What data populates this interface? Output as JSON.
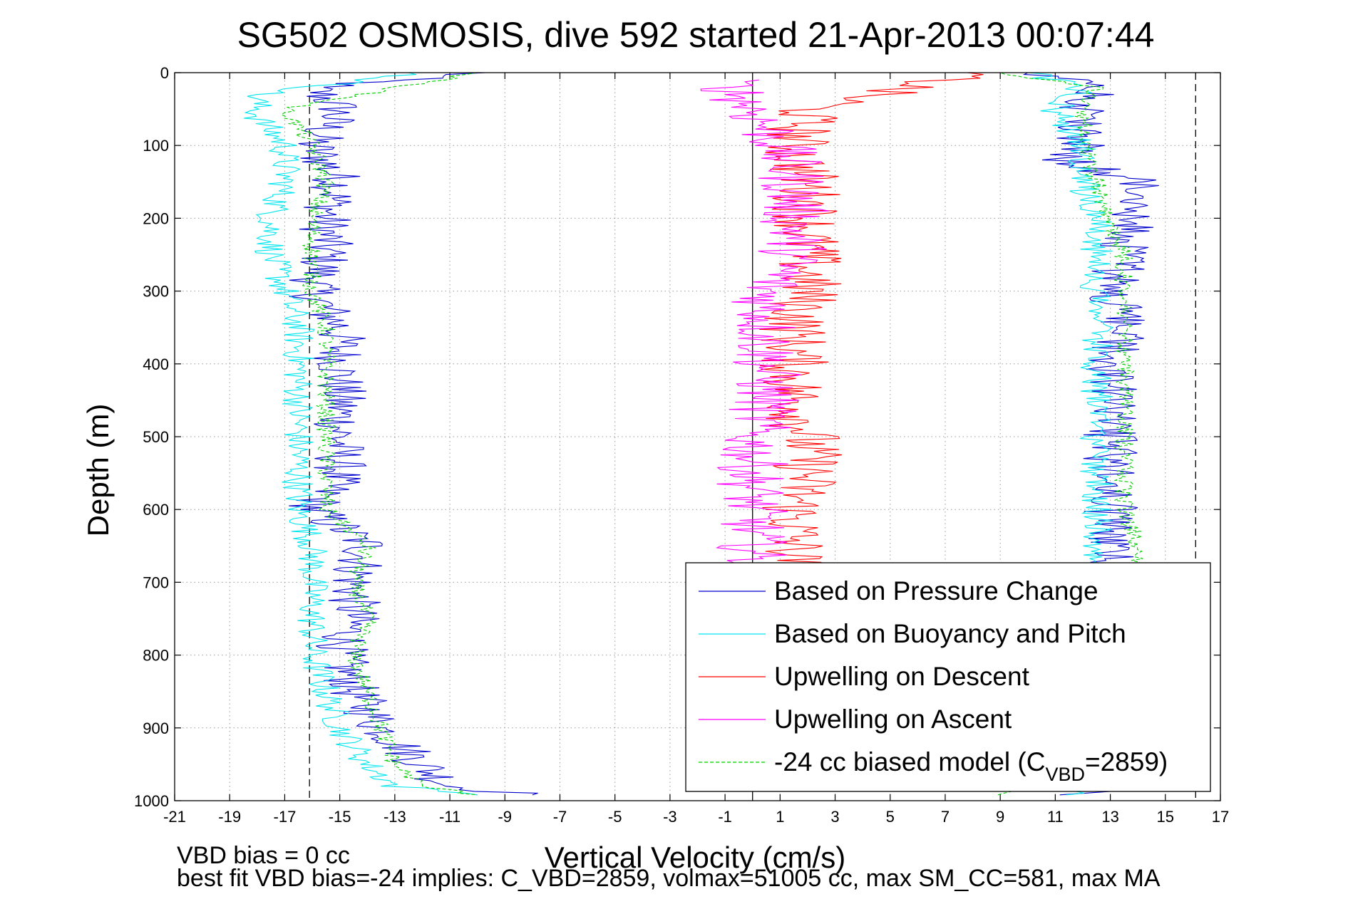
{
  "chart_data": {
    "type": "line",
    "title": "SG502 OSMOSIS, dive 592 started 21-Apr-2013 00:07:44",
    "xlabel": "Vertical Velocity (cm/s)",
    "ylabel": "Depth (m)",
    "xlim": [
      -21,
      17
    ],
    "ylim": [
      0,
      1000
    ],
    "y_reversed": true,
    "grid": true,
    "legend_position": "lower-right",
    "x_ticks": [
      "-21",
      "-19",
      "-17",
      "-15",
      "-13",
      "-11",
      "-9",
      "-7",
      "-5",
      "-3",
      "-1",
      "1",
      "3",
      "5",
      "7",
      "9",
      "11",
      "13",
      "15",
      "17"
    ],
    "y_ticks": [
      "0",
      "100",
      "200",
      "300",
      "400",
      "500",
      "600",
      "700",
      "800",
      "900",
      "1000"
    ],
    "reference_lines": [
      {
        "x": -16.1,
        "style": "dashed"
      },
      {
        "x": 0,
        "style": "solid"
      },
      {
        "x": 16.1,
        "style": "dashed"
      }
    ],
    "series": [
      {
        "name": "Based on Pressure Change",
        "color": "#0000cc",
        "descent": [
          [
            -10,
            0
          ],
          [
            -16,
            20
          ],
          [
            -15,
            50
          ],
          [
            -16,
            100
          ],
          [
            -15,
            150
          ],
          [
            -15.5,
            200
          ],
          [
            -15.5,
            250
          ],
          [
            -16,
            300
          ],
          [
            -15,
            350
          ],
          [
            -15,
            400
          ],
          [
            -15,
            450
          ],
          [
            -15,
            500
          ],
          [
            -15,
            550
          ],
          [
            -16,
            600
          ],
          [
            -14,
            650
          ],
          [
            -14.5,
            700
          ],
          [
            -14.5,
            750
          ],
          [
            -15,
            800
          ],
          [
            -14.5,
            850
          ],
          [
            -13.5,
            900
          ],
          [
            -12,
            950
          ],
          [
            -11,
            980
          ],
          [
            -8,
            992
          ]
        ],
        "ascent": [
          [
            12,
            992
          ],
          [
            13.5,
            950
          ],
          [
            13.5,
            900
          ],
          [
            13.5,
            850
          ],
          [
            13.5,
            800
          ],
          [
            13.5,
            750
          ],
          [
            13.5,
            700
          ],
          [
            13,
            650
          ],
          [
            13,
            600
          ],
          [
            13,
            550
          ],
          [
            13,
            500
          ],
          [
            13,
            450
          ],
          [
            13,
            400
          ],
          [
            13.5,
            350
          ],
          [
            13,
            300
          ],
          [
            13.5,
            250
          ],
          [
            14,
            200
          ],
          [
            14,
            150
          ],
          [
            11.5,
            120
          ],
          [
            12,
            100
          ],
          [
            12,
            50
          ],
          [
            13,
            20
          ],
          [
            10,
            0
          ]
        ]
      },
      {
        "name": "Based on Buoyancy and Pitch",
        "color": "#00e5ee",
        "descent": [
          [
            -12,
            0
          ],
          [
            -18,
            30
          ],
          [
            -18,
            60
          ],
          [
            -17,
            100
          ],
          [
            -17,
            150
          ],
          [
            -17.5,
            200
          ],
          [
            -17.5,
            250
          ],
          [
            -17,
            300
          ],
          [
            -16.5,
            350
          ],
          [
            -16.5,
            400
          ],
          [
            -16.5,
            450
          ],
          [
            -16.5,
            500
          ],
          [
            -16.5,
            550
          ],
          [
            -16.5,
            600
          ],
          [
            -16,
            650
          ],
          [
            -16,
            700
          ],
          [
            -16,
            750
          ],
          [
            -16,
            800
          ],
          [
            -15.5,
            850
          ],
          [
            -15,
            900
          ],
          [
            -14,
            950
          ],
          [
            -13,
            980
          ],
          [
            -10,
            992
          ]
        ],
        "ascent": [
          [
            12,
            992
          ],
          [
            12.5,
            950
          ],
          [
            12.5,
            900
          ],
          [
            12.5,
            850
          ],
          [
            12.5,
            800
          ],
          [
            12.5,
            750
          ],
          [
            12.5,
            700
          ],
          [
            12.5,
            650
          ],
          [
            12.5,
            600
          ],
          [
            12.5,
            550
          ],
          [
            12.5,
            500
          ],
          [
            12.5,
            450
          ],
          [
            12.5,
            400
          ],
          [
            12.5,
            350
          ],
          [
            12.5,
            300
          ],
          [
            12.5,
            250
          ],
          [
            12.5,
            200
          ],
          [
            12,
            150
          ],
          [
            12,
            100
          ],
          [
            11,
            50
          ],
          [
            12,
            20
          ],
          [
            10,
            0
          ]
        ]
      },
      {
        "name": "Upwelling on Descent",
        "color": "#ff0000",
        "values": [
          [
            8,
            0
          ],
          [
            2,
            50
          ],
          [
            1.5,
            100
          ],
          [
            2,
            150
          ],
          [
            2,
            200
          ],
          [
            2,
            250
          ],
          [
            2,
            300
          ],
          [
            1.5,
            350
          ],
          [
            1.5,
            400
          ],
          [
            1.5,
            450
          ],
          [
            2,
            500
          ],
          [
            2,
            550
          ],
          [
            1.5,
            600
          ],
          [
            1.5,
            650
          ],
          [
            1.5,
            700
          ]
        ]
      },
      {
        "name": "Upwelling on Ascent",
        "color": "#ff00ff",
        "values": [
          [
            -1,
            10
          ],
          [
            0,
            50
          ],
          [
            1,
            100
          ],
          [
            1.5,
            150
          ],
          [
            1.5,
            200
          ],
          [
            1.5,
            250
          ],
          [
            0.5,
            300
          ],
          [
            0.5,
            350
          ],
          [
            0.5,
            400
          ],
          [
            0.5,
            450
          ],
          [
            0,
            500
          ],
          [
            0,
            550
          ],
          [
            0,
            600
          ],
          [
            0,
            650
          ],
          [
            0,
            700
          ]
        ]
      },
      {
        "name": "-24 cc biased model (C_VBD=2859)",
        "legend_name": "-24 cc biased model (C",
        "legend_sub": "VBD",
        "legend_tail": "=2859)",
        "color": "#00cc00",
        "dashed": true,
        "descent": [
          [
            -10,
            0
          ],
          [
            -17,
            50
          ],
          [
            -16,
            100
          ],
          [
            -15.5,
            150
          ],
          [
            -16,
            200
          ],
          [
            -16,
            250
          ],
          [
            -16,
            300
          ],
          [
            -15.5,
            350
          ],
          [
            -15.5,
            400
          ],
          [
            -15.5,
            450
          ],
          [
            -15.5,
            500
          ],
          [
            -15.5,
            550
          ],
          [
            -15.5,
            600
          ],
          [
            -14,
            650
          ],
          [
            -14.5,
            700
          ],
          [
            -14,
            750
          ],
          [
            -14.5,
            800
          ],
          [
            -14,
            850
          ],
          [
            -13.5,
            900
          ],
          [
            -13,
            950
          ],
          [
            -12,
            980
          ],
          [
            -10,
            992
          ]
        ],
        "ascent": [
          [
            9,
            992
          ],
          [
            13.5,
            950
          ],
          [
            14,
            900
          ],
          [
            14,
            850
          ],
          [
            14,
            800
          ],
          [
            14,
            750
          ],
          [
            14,
            700
          ],
          [
            14,
            650
          ],
          [
            13.5,
            600
          ],
          [
            13.5,
            550
          ],
          [
            13.5,
            500
          ],
          [
            13.5,
            450
          ],
          [
            13.5,
            400
          ],
          [
            13.5,
            350
          ],
          [
            13.5,
            300
          ],
          [
            13.5,
            250
          ],
          [
            13,
            200
          ],
          [
            12.5,
            150
          ],
          [
            12,
            100
          ],
          [
            12,
            50
          ],
          [
            12.5,
            20
          ],
          [
            9,
            0
          ]
        ]
      }
    ]
  },
  "notes": {
    "line1": "VBD bias = 0 cc",
    "line2": "best fit VBD bias=-24 implies: C_VBD=2859, volmax=51005 cc, max SM_CC=581, max MA"
  }
}
